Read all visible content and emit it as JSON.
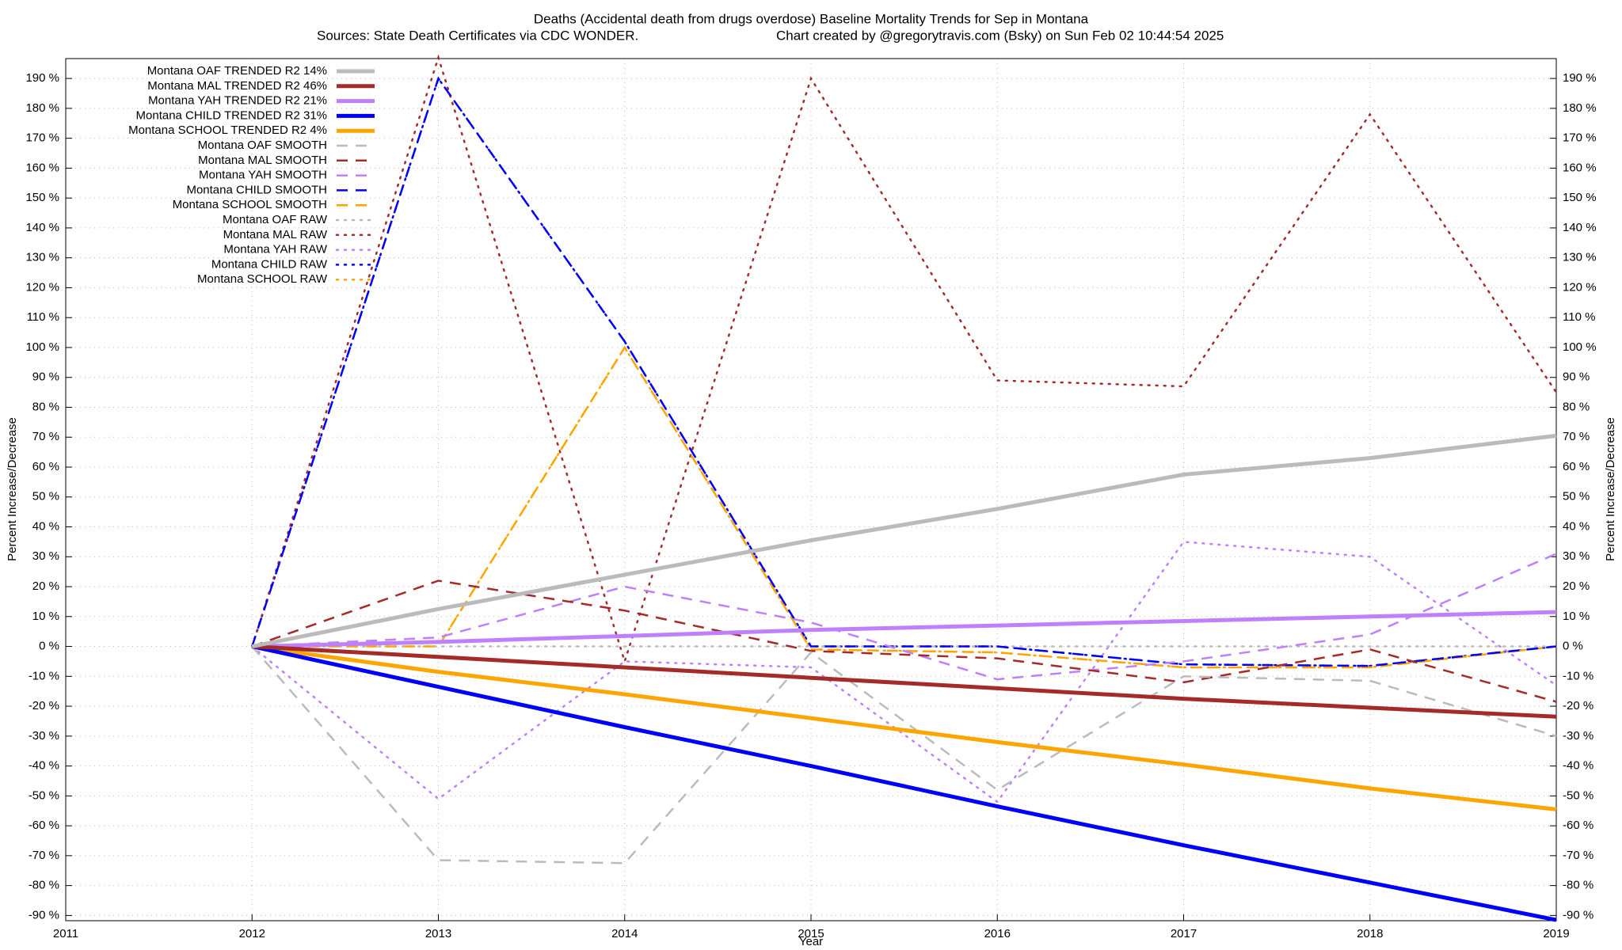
{
  "chart_data": {
    "type": "line",
    "title": "Deaths (Accidental death from drugs overdose)  Baseline Mortality Trends for Sep in Montana",
    "subtitle": "Sources: State Death Certificates via CDC WONDER.",
    "credit": "Chart created by @gregorytravis.com (Bsky) on Sun Feb 02 10:44:54 2025",
    "x_label": "Year",
    "y_label": "Percent Increase/Decrease",
    "y2_label": "Percent Increase/Decrease",
    "grid": true,
    "legend": "top-left",
    "xlim": [
      2011,
      2019
    ],
    "xticks": [
      2011,
      2012,
      2013,
      2014,
      2015,
      2016,
      2017,
      2018,
      2019
    ],
    "ylim": [
      -91.75,
      196.65
    ],
    "yticks": [
      {
        "value": -90,
        "label": "-90 %"
      },
      {
        "value": -80,
        "label": "-80 %"
      },
      {
        "value": -70,
        "label": "-70 %"
      },
      {
        "value": -60,
        "label": "-60 %"
      },
      {
        "value": -50,
        "label": "-50 %"
      },
      {
        "value": -40,
        "label": "-40 %"
      },
      {
        "value": -30,
        "label": "-30 %"
      },
      {
        "value": -20,
        "label": "-20 %"
      },
      {
        "value": -10,
        "label": "-10 %"
      },
      {
        "value": 0,
        "label": "0 %"
      },
      {
        "value": 10,
        "label": "10 %"
      },
      {
        "value": 20,
        "label": "20 %"
      },
      {
        "value": 30,
        "label": "30 %"
      },
      {
        "value": 40,
        "label": "40 %"
      },
      {
        "value": 50,
        "label": "50 %"
      },
      {
        "value": 60,
        "label": "60 %"
      },
      {
        "value": 70,
        "label": "70 %"
      },
      {
        "value": 80,
        "label": "80 %"
      },
      {
        "value": 90,
        "label": "90 %"
      },
      {
        "value": 100,
        "label": "100 %"
      },
      {
        "value": 110,
        "label": "110 %"
      },
      {
        "value": 120,
        "label": "120 %"
      },
      {
        "value": 130,
        "label": "130 %"
      },
      {
        "value": 140,
        "label": "140 %"
      },
      {
        "value": 150,
        "label": "150 %"
      },
      {
        "value": 160,
        "label": "160 %"
      },
      {
        "value": 170,
        "label": "170 %"
      },
      {
        "value": 180,
        "label": "180 %"
      },
      {
        "value": 190,
        "label": "190 %"
      }
    ],
    "x": [
      2012,
      2013,
      2014,
      2015,
      2016,
      2017,
      2018,
      2019
    ],
    "series": [
      {
        "name": "Montana OAF TRENDED R2  14%",
        "color": "#bbbbbb",
        "style": "solid",
        "values": [
          0,
          12.5,
          24,
          35.5,
          46,
          57.5,
          63,
          70.5
        ]
      },
      {
        "name": "Montana MAL TRENDED R2  46%",
        "color": "#a52a2a",
        "style": "solid",
        "values": [
          0,
          -3.5,
          -7,
          -10.5,
          -14,
          -17.5,
          -20.5,
          -23.5
        ]
      },
      {
        "name": "Montana YAH TRENDED R2  21%",
        "color": "#bf80ff",
        "style": "solid",
        "values": [
          0,
          1.5,
          3.5,
          5.5,
          7,
          8.5,
          10,
          11.5
        ]
      },
      {
        "name": "Montana CHILD TRENDED R2  31%",
        "color": "#0000ff",
        "style": "solid",
        "values": [
          0,
          -13.5,
          -27,
          -40,
          -53.5,
          -66.5,
          -79,
          -91.5
        ]
      },
      {
        "name": "Montana SCHOOL TRENDED R2   4%",
        "color": "#ffa500",
        "style": "solid",
        "values": [
          0,
          -8.5,
          -16,
          -24,
          -32,
          -39.5,
          -47.5,
          -54.5
        ]
      },
      {
        "name": "Montana OAF SMOOTH",
        "color": "#bbbbbb",
        "style": "dashed",
        "values": [
          0,
          -71.5,
          -72.5,
          -2,
          -48,
          -10,
          -11.5,
          -30
        ]
      },
      {
        "name": "Montana MAL SMOOTH",
        "color": "#a52a2a",
        "style": "dashed",
        "values": [
          0,
          22,
          12,
          -1.5,
          -4,
          -12,
          -1,
          -18.5
        ]
      },
      {
        "name": "Montana YAH SMOOTH",
        "color": "#bf80ff",
        "style": "dashed",
        "values": [
          0,
          3,
          20,
          8,
          -11,
          -5,
          4,
          31
        ]
      },
      {
        "name": "Montana CHILD SMOOTH",
        "color": "#0000ff",
        "style": "dashed",
        "values": [
          0,
          190,
          102,
          0,
          0,
          -6,
          -6.5,
          0
        ]
      },
      {
        "name": "Montana SCHOOL SMOOTH",
        "color": "#ffa500",
        "style": "dashed",
        "values": [
          0,
          0,
          100,
          -1,
          -2,
          -7,
          -7,
          0
        ]
      },
      {
        "name": "Montana OAF RAW",
        "color": "#bbbbbb",
        "style": "dotted",
        "values": [
          0,
          0,
          0,
          0,
          0,
          0,
          0,
          0
        ]
      },
      {
        "name": "Montana MAL RAW",
        "color": "#a52a2a",
        "style": "dotted",
        "values": [
          0,
          197,
          -5,
          190,
          89,
          87,
          178,
          85
        ]
      },
      {
        "name": "Montana YAH RAW",
        "color": "#bf80ff",
        "style": "dotted",
        "values": [
          0,
          -51,
          -5,
          -7,
          -52,
          35,
          30,
          -13
        ]
      },
      {
        "name": "Montana CHILD RAW",
        "color": "#0000ff",
        "style": "dotted",
        "values": [
          0,
          190,
          102,
          0,
          0,
          -6,
          -6.5,
          0
        ]
      },
      {
        "name": "Montana SCHOOL RAW",
        "color": "#ffa500",
        "style": "dotted",
        "values": [
          0,
          0,
          100,
          -1,
          -2,
          -7,
          -7,
          0
        ]
      }
    ]
  }
}
